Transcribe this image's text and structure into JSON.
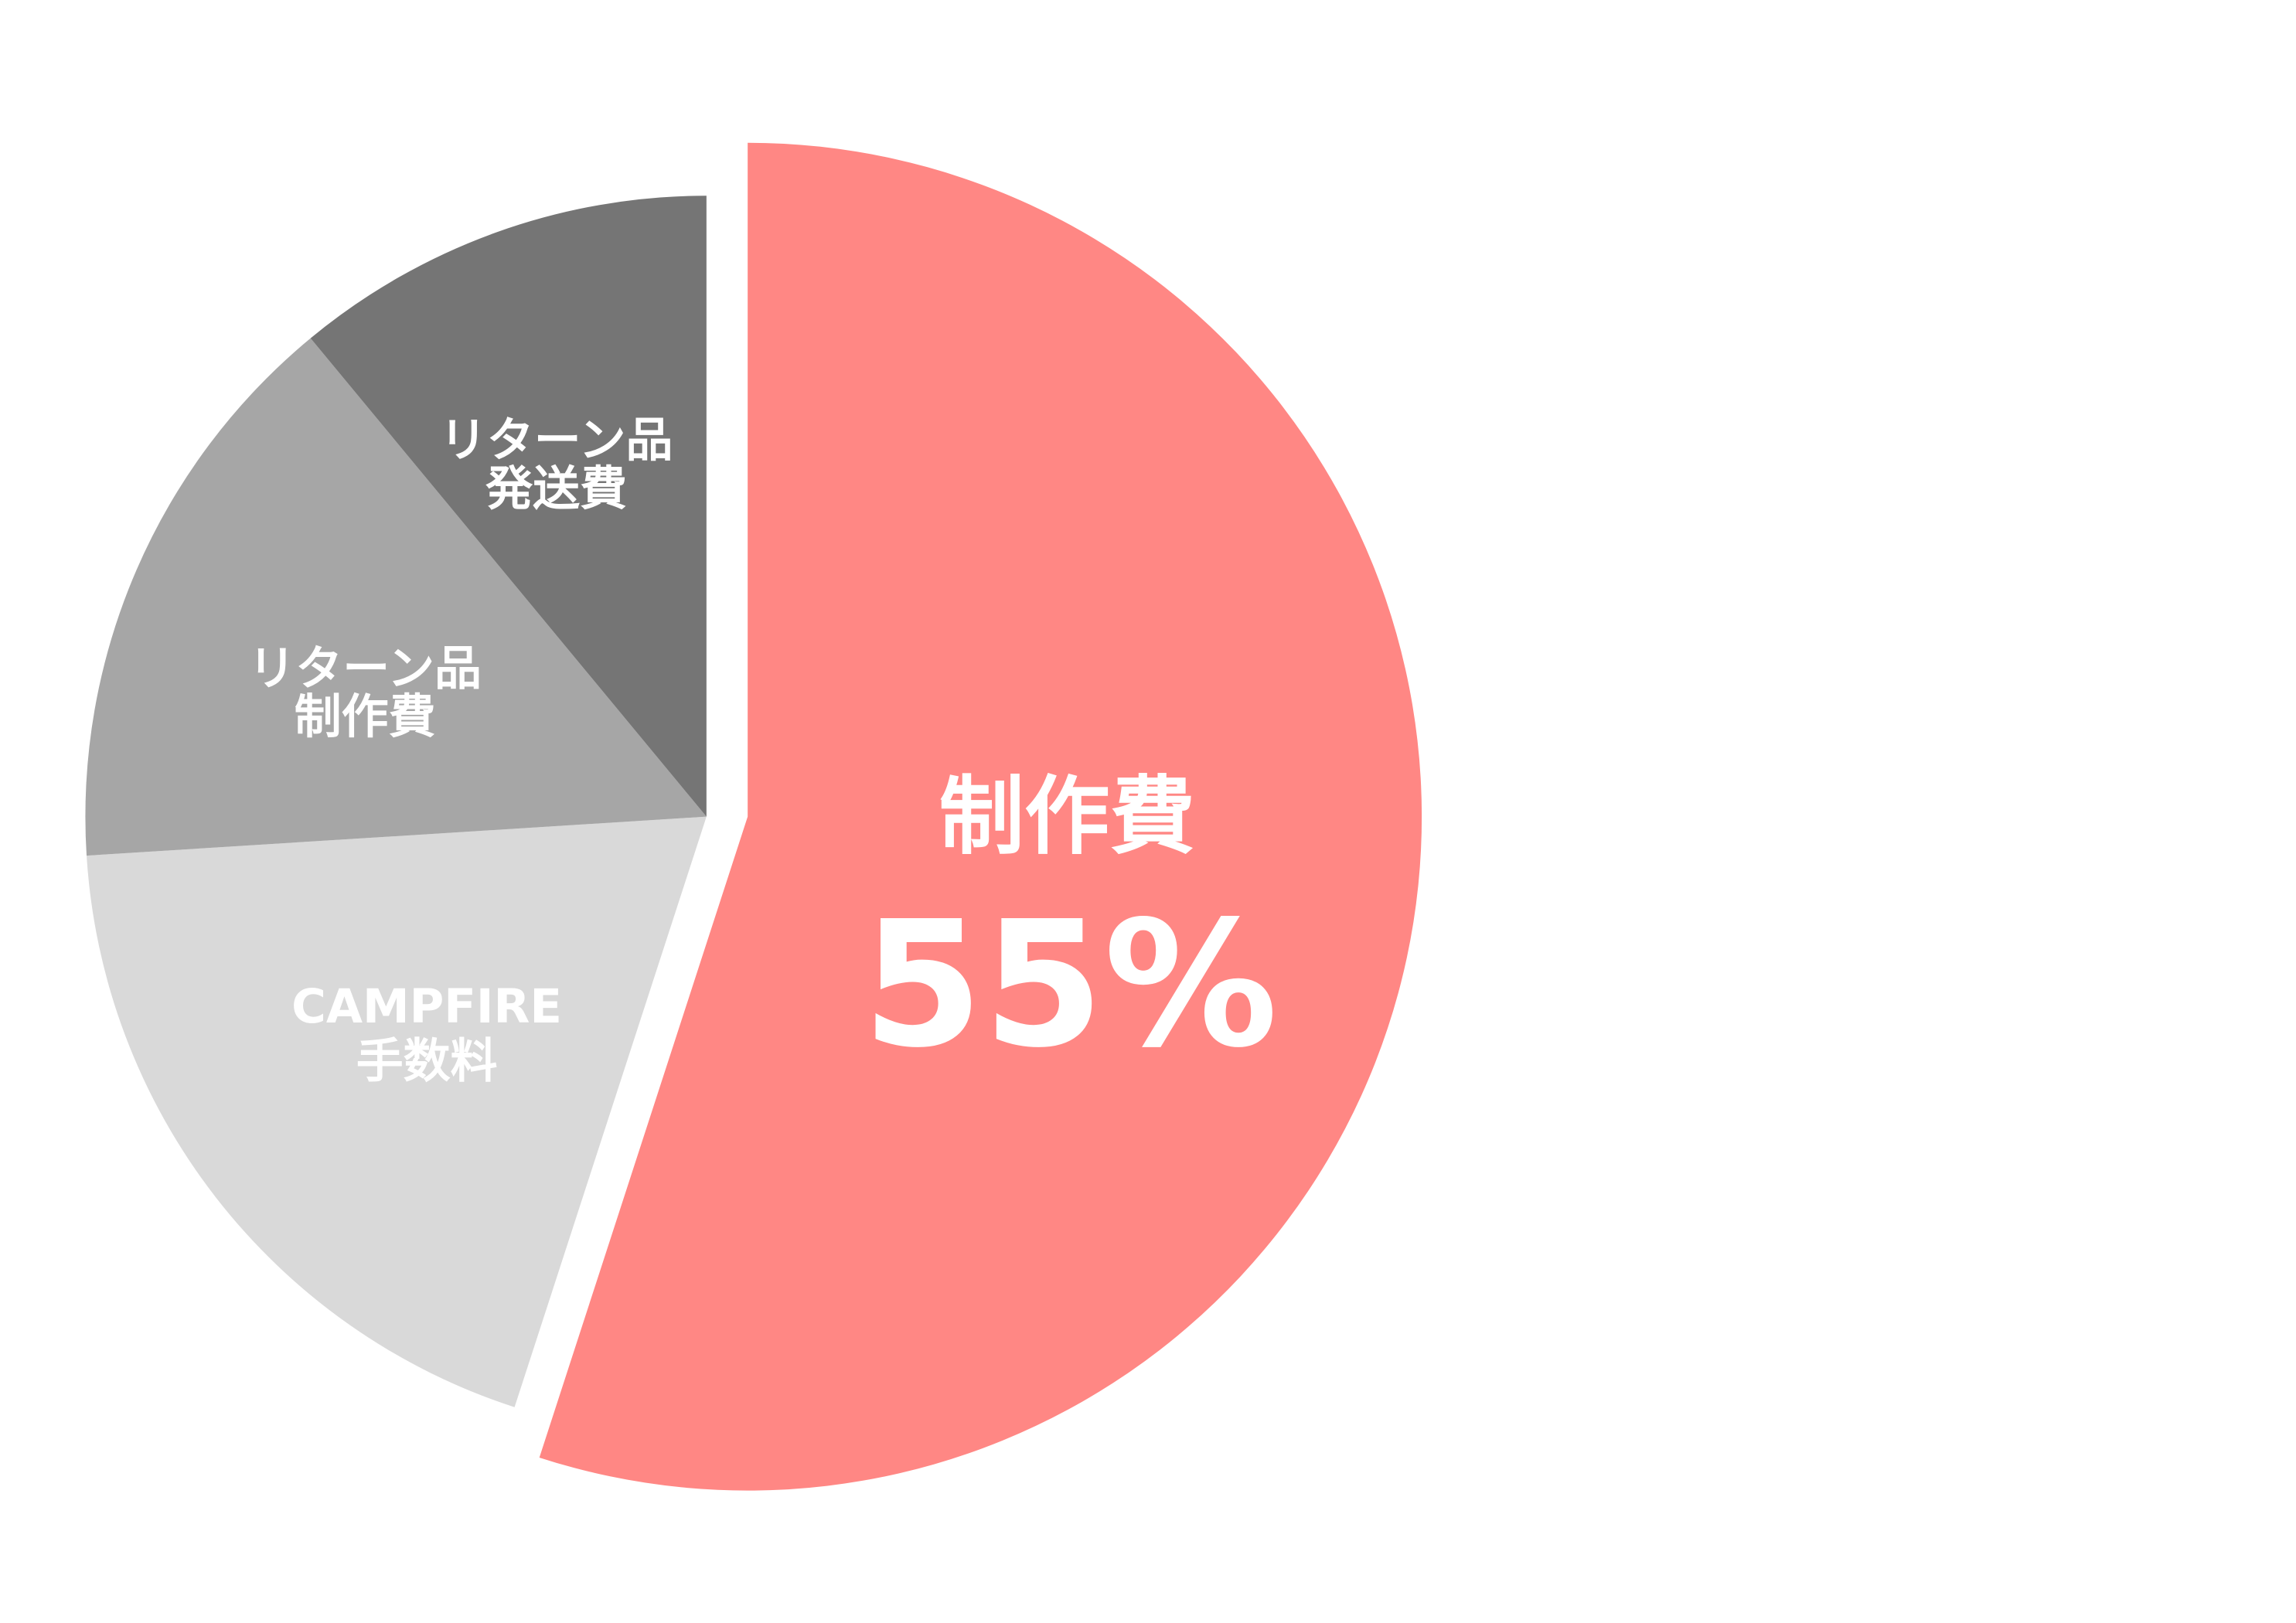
{
  "chart_data": {
    "type": "pie",
    "start_angle": "12 o'clock",
    "direction": "clockwise",
    "slices": [
      {
        "label_lines": [
          "制作費"
        ],
        "value": 55,
        "value_label": "55%",
        "color": "#FF8784",
        "exploded": true
      },
      {
        "label_lines": [
          "CAMPFIRE",
          "手数料"
        ],
        "value": 19,
        "color": "#D9D9D9"
      },
      {
        "label_lines": [
          "リターン品",
          "制作費"
        ],
        "value": 15,
        "color": "#A6A6A6"
      },
      {
        "label_lines": [
          "リターン品",
          "発送費"
        ],
        "value": 11,
        "color": "#757575"
      }
    ],
    "legend": "none"
  }
}
